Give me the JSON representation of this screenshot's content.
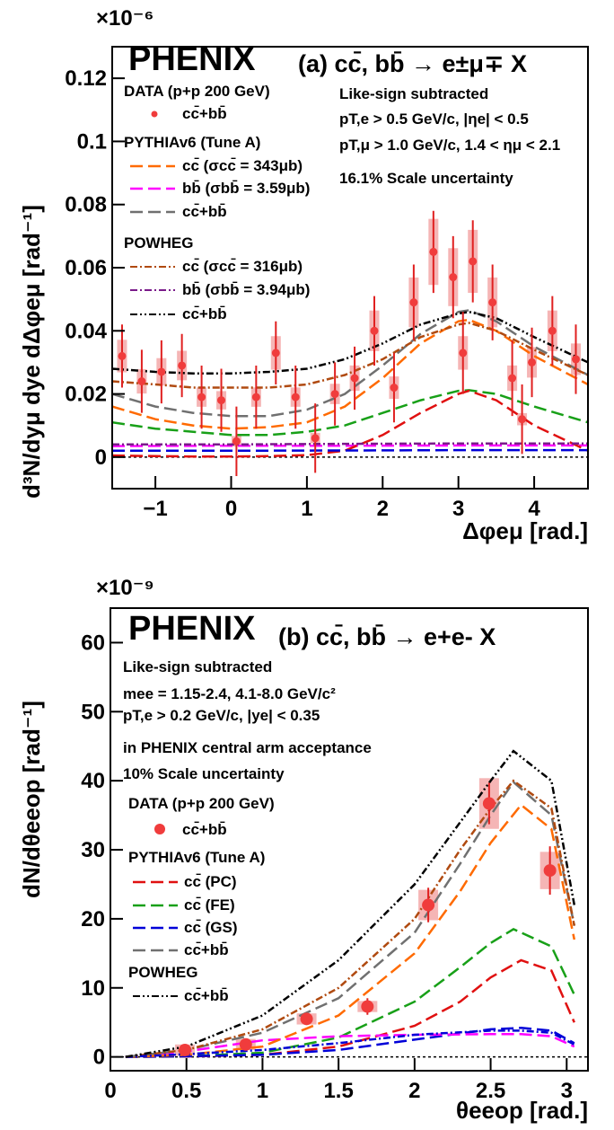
{
  "colors": {
    "data_marker": "#f03c3c",
    "syst_box": "#f3a8a8",
    "cc": "#ff6a00",
    "bb": "#ff00ff",
    "sum": "#707070",
    "pc": "#e01010",
    "fe": "#18a018",
    "gs": "#0000d8",
    "pow_cc": "#b04a10",
    "pow_bb": "#7a1a8a",
    "pow_sum": "#000000"
  },
  "panel_a": {
    "experiment": "PHENIX",
    "process": "(a) cc̄, bb̄ → e±μ∓ X",
    "exponent": "×10⁻⁶",
    "cuts": [
      "Like-sign subtracted",
      "pT,e > 0.5 GeV/c, |ηe| < 0.5",
      "pT,μ > 1.0 GeV/c, 1.4 < ημ < 2.1",
      "16.1% Scale uncertainty"
    ],
    "legend": {
      "data_header": "DATA (p+p 200 GeV)",
      "data_entry": "cc̄+bb̄",
      "pythia_header": "PYTHIAv6 (Tune A)",
      "pythia_cc": "cc̄  (σcc̄ = 343μb)",
      "pythia_bb": "bb̄  (σbb̄ = 3.59μb)",
      "pythia_sum": "cc̄+bb̄",
      "powheg_header": "POWHEG",
      "powheg_cc": "cc̄  (σcc̄ = 316μb)",
      "powheg_bb": "bb̄  (σbb̄ = 3.94μb)",
      "powheg_sum": "cc̄+bb̄"
    },
    "xlabel": "Δφeμ [rad.]",
    "ylabel": "d³N/dyμ dye dΔφeμ [rad⁻¹]"
  },
  "panel_b": {
    "experiment": "PHENIX",
    "process": "(b) cc̄, bb̄ → e+e- X",
    "exponent": "×10⁻⁹",
    "cuts": [
      "Like-sign subtracted",
      "mee = 1.15-2.4, 4.1-8.0 GeV/c²",
      "pT,e > 0.2 GeV/c, |ye| < 0.35",
      "in PHENIX central arm acceptance",
      "10% Scale uncertainty"
    ],
    "legend": {
      "data_header": "DATA (p+p 200 GeV)",
      "data_entry": "cc̄+bb̄",
      "pythia_header": "PYTHIAv6 (Tune A)",
      "pc": "cc̄ (PC)",
      "fe": "cc̄ (FE)",
      "gs": "cc̄ (GS)",
      "pythia_sum": "cc̄+bb̄",
      "powheg_header": "POWHEG",
      "powheg_sum": "cc̄+bb̄"
    },
    "xlabel": "θeeop [rad.]",
    "ylabel": "dN/dθeeop [rad⁻¹]"
  },
  "chart_data": [
    {
      "type": "scatter",
      "title": "(a) cc̄, bb̄ → e±μ∓ X",
      "xlabel": "Δφeμ [rad.]",
      "ylabel": "d³N/dyμ dye dΔφeμ [rad⁻¹] ×10⁻⁶",
      "xlim": [
        -1.57,
        4.71
      ],
      "ylim": [
        -0.01,
        0.13
      ],
      "xticks": [
        -1,
        0,
        1,
        2,
        3,
        4
      ],
      "yticks": [
        0,
        0.02,
        0.04,
        0.06,
        0.08,
        0.1,
        0.12
      ],
      "data": {
        "name": "cc̄+bb̄",
        "x": [
          -1.44,
          -1.18,
          -0.92,
          -0.65,
          -0.39,
          -0.13,
          0.07,
          0.33,
          0.59,
          0.85,
          1.11,
          1.37,
          1.63,
          1.89,
          2.15,
          2.41,
          2.67,
          2.93,
          3.06,
          3.19,
          3.45,
          3.71,
          3.84,
          3.97,
          4.24,
          4.55
        ],
        "y": [
          0.032,
          0.024,
          0.027,
          0.029,
          0.019,
          0.018,
          0.005,
          0.019,
          0.033,
          0.019,
          0.006,
          0.02,
          0.025,
          0.04,
          0.022,
          0.049,
          0.065,
          0.057,
          0.033,
          0.062,
          0.049,
          0.025,
          0.012,
          0.03,
          0.04,
          0.031
        ],
        "yerr": [
          0.01,
          0.01,
          0.01,
          0.01,
          0.01,
          0.01,
          0.011,
          0.01,
          0.01,
          0.01,
          0.011,
          0.01,
          0.01,
          0.011,
          0.011,
          0.012,
          0.013,
          0.013,
          0.013,
          0.013,
          0.012,
          0.012,
          0.011,
          0.011,
          0.011,
          0.011
        ]
      },
      "series": [
        {
          "name": "PYTHIA cc̄ (σcc̄ = 343μb)",
          "style": "long-dash",
          "colorKey": "cc",
          "x": [
            -1.57,
            -1,
            -0.5,
            0,
            0.5,
            1,
            1.5,
            2,
            2.5,
            3,
            3.14,
            3.5,
            4,
            4.71
          ],
          "y": [
            0.016,
            0.012,
            0.01,
            0.009,
            0.0095,
            0.011,
            0.016,
            0.025,
            0.036,
            0.043,
            0.0435,
            0.04,
            0.032,
            0.023
          ]
        },
        {
          "name": "PYTHIA bb̄ (σbb̄ = 3.59μb)",
          "style": "long-dash",
          "colorKey": "bb",
          "x": [
            -1.57,
            0,
            1.5,
            3.14,
            4.71
          ],
          "y": [
            0.0035,
            0.0036,
            0.0036,
            0.0037,
            0.0037
          ]
        },
        {
          "name": "PYTHIA cc̄+bb̄",
          "style": "long-dash",
          "colorKey": "sum",
          "x": [
            -1.57,
            -1,
            -0.5,
            0,
            0.5,
            1,
            1.5,
            2,
            2.5,
            3,
            3.14,
            3.5,
            4,
            4.71
          ],
          "y": [
            0.02,
            0.016,
            0.014,
            0.013,
            0.013,
            0.015,
            0.02,
            0.029,
            0.039,
            0.046,
            0.0465,
            0.043,
            0.035,
            0.026
          ]
        },
        {
          "name": "PYTHIA green",
          "style": "long-dash",
          "colorKey": "fe",
          "x": [
            -1.57,
            -1,
            -0.5,
            0,
            0.5,
            1,
            1.5,
            2,
            2.5,
            3,
            3.14,
            3.5,
            4,
            4.71
          ],
          "y": [
            0.011,
            0.009,
            0.008,
            0.007,
            0.007,
            0.008,
            0.01,
            0.014,
            0.018,
            0.021,
            0.0212,
            0.02,
            0.016,
            0.011
          ]
        },
        {
          "name": "PYTHIA red",
          "style": "long-dash",
          "colorKey": "pc",
          "x": [
            -1.57,
            -1,
            -0.5,
            0,
            0.5,
            1,
            1.5,
            2,
            2.5,
            3,
            3.14,
            3.5,
            4,
            4.71
          ],
          "y": [
            0.0005,
            0.0003,
            0.0002,
            0.0002,
            0.0003,
            0.0006,
            0.002,
            0.007,
            0.014,
            0.02,
            0.021,
            0.018,
            0.01,
            0.002
          ]
        },
        {
          "name": "PYTHIA blue",
          "style": "long-dash",
          "colorKey": "gs",
          "x": [
            -1.57,
            0,
            1.5,
            3.14,
            4.71
          ],
          "y": [
            0.002,
            0.002,
            0.0021,
            0.0022,
            0.0022
          ]
        },
        {
          "name": "POWHEG cc̄ (σcc̄ = 316μb)",
          "style": "dash-dot",
          "colorKey": "pow_cc",
          "x": [
            -1.57,
            -1,
            -0.5,
            0,
            0.5,
            1,
            1.5,
            2,
            2.5,
            3,
            3.14,
            3.5,
            4,
            4.71
          ],
          "y": [
            0.024,
            0.023,
            0.022,
            0.022,
            0.022,
            0.023,
            0.026,
            0.031,
            0.038,
            0.042,
            0.0425,
            0.04,
            0.034,
            0.026
          ]
        },
        {
          "name": "POWHEG bb̄ (σbb̄ = 3.94μb)",
          "style": "dash-dot",
          "colorKey": "pow_bb",
          "x": [
            -1.57,
            0,
            1.5,
            3.14,
            4.71
          ],
          "y": [
            0.004,
            0.004,
            0.0042,
            0.0043,
            0.0043
          ]
        },
        {
          "name": "POWHEG cc̄+bb̄",
          "style": "dash-dot-dot",
          "colorKey": "pow_sum",
          "x": [
            -1.57,
            -1,
            -0.5,
            0,
            0.5,
            1,
            1.5,
            2,
            2.5,
            3,
            3.14,
            3.5,
            4,
            4.71
          ],
          "y": [
            0.028,
            0.027,
            0.0265,
            0.0265,
            0.027,
            0.028,
            0.031,
            0.036,
            0.042,
            0.0455,
            0.046,
            0.044,
            0.038,
            0.03
          ]
        }
      ]
    },
    {
      "type": "scatter",
      "title": "(b) cc̄, bb̄ → e+e- X",
      "xlabel": "θeeop [rad.]",
      "ylabel": "dN/dθeeop [rad⁻¹] ×10⁻⁹",
      "xlim": [
        0,
        3.14
      ],
      "ylim": [
        -2,
        65
      ],
      "xticks": [
        0,
        0.5,
        1,
        1.5,
        2,
        2.5,
        3
      ],
      "yticks": [
        0,
        10,
        20,
        30,
        40,
        50,
        60
      ],
      "data": {
        "name": "cc̄+bb̄",
        "x": [
          0.49,
          0.89,
          1.29,
          1.69,
          2.09,
          2.49,
          2.89
        ],
        "y": [
          1.0,
          1.8,
          5.5,
          7.3,
          22.0,
          36.7,
          27.0
        ],
        "yerr": [
          0.3,
          0.4,
          0.8,
          1.2,
          2.5,
          3.0,
          3.5
        ]
      },
      "series": [
        {
          "name": "PYTHIA cc̄ (PC)",
          "style": "long-dash",
          "colorKey": "pc",
          "x": [
            0.1,
            0.5,
            1,
            1.5,
            2,
            2.3,
            2.5,
            2.7,
            2.9,
            3.05
          ],
          "y": [
            0,
            0.05,
            0.3,
            1.5,
            4.5,
            8,
            11.5,
            14,
            12.5,
            5
          ]
        },
        {
          "name": "PYTHIA cc̄ (FE)",
          "style": "long-dash",
          "colorKey": "fe",
          "x": [
            0.1,
            0.5,
            1,
            1.5,
            2,
            2.3,
            2.5,
            2.65,
            2.9,
            3.05
          ],
          "y": [
            0,
            0.1,
            0.6,
            2.8,
            8,
            13,
            16.5,
            18.5,
            16,
            9
          ]
        },
        {
          "name": "PYTHIA cc̄ (GS)",
          "style": "long-dash",
          "colorKey": "gs",
          "x": [
            0.1,
            0.5,
            1,
            1.5,
            2,
            2.5,
            2.7,
            2.9,
            3.05
          ],
          "y": [
            0,
            0.1,
            0.3,
            1,
            2.5,
            4,
            4.2,
            3.8,
            2
          ]
        },
        {
          "name": "PYTHIA bb̄",
          "style": "long-dash",
          "colorKey": "bb",
          "x": [
            0.1,
            0.5,
            1,
            1.5,
            2,
            2.5,
            2.7,
            2.9,
            3.05
          ],
          "y": [
            0,
            0.8,
            2.4,
            3,
            3.2,
            3.3,
            3.3,
            3,
            1.5
          ]
        },
        {
          "name": "PYTHIA cc̄",
          "style": "long-dash",
          "colorKey": "cc",
          "x": [
            0.1,
            0.5,
            1,
            1.5,
            2,
            2.3,
            2.5,
            2.7,
            2.9,
            3.05
          ],
          "y": [
            0,
            0.3,
            1.5,
            6,
            15,
            24,
            31,
            36.5,
            33,
            17
          ]
        },
        {
          "name": "PYTHIA cc̄+bb̄",
          "style": "long-dash",
          "colorKey": "sum",
          "x": [
            0.1,
            0.5,
            1,
            1.5,
            2,
            2.3,
            2.5,
            2.65,
            2.9,
            3.05
          ],
          "y": [
            0,
            1,
            3.5,
            8.5,
            18,
            28,
            35,
            39.8,
            35,
            19
          ]
        },
        {
          "name": "POWHEG cc̄",
          "style": "dash-dot",
          "colorKey": "pow_cc",
          "x": [
            0.1,
            0.5,
            1,
            1.5,
            2,
            2.3,
            2.5,
            2.65,
            2.9,
            3.05
          ],
          "y": [
            0,
            1,
            4,
            10,
            20,
            30,
            36,
            40,
            36,
            19
          ]
        },
        {
          "name": "POWHEG bb̄",
          "style": "dash-dot",
          "colorKey": "gs",
          "x": [
            0.1,
            0.5,
            1,
            1.5,
            2,
            2.5,
            2.7,
            2.9,
            3.05
          ],
          "y": [
            0,
            0.4,
            1,
            2,
            3.2,
            3.8,
            3.8,
            3.5,
            1.8
          ]
        },
        {
          "name": "POWHEG cc̄+bb̄",
          "style": "dash-dot-dot",
          "colorKey": "pow_sum",
          "x": [
            0.1,
            0.5,
            1,
            1.5,
            2,
            2.3,
            2.5,
            2.65,
            2.9,
            3.05
          ],
          "y": [
            0,
            1.5,
            6,
            14,
            25,
            34,
            40,
            44.3,
            40,
            22
          ]
        }
      ]
    }
  ]
}
